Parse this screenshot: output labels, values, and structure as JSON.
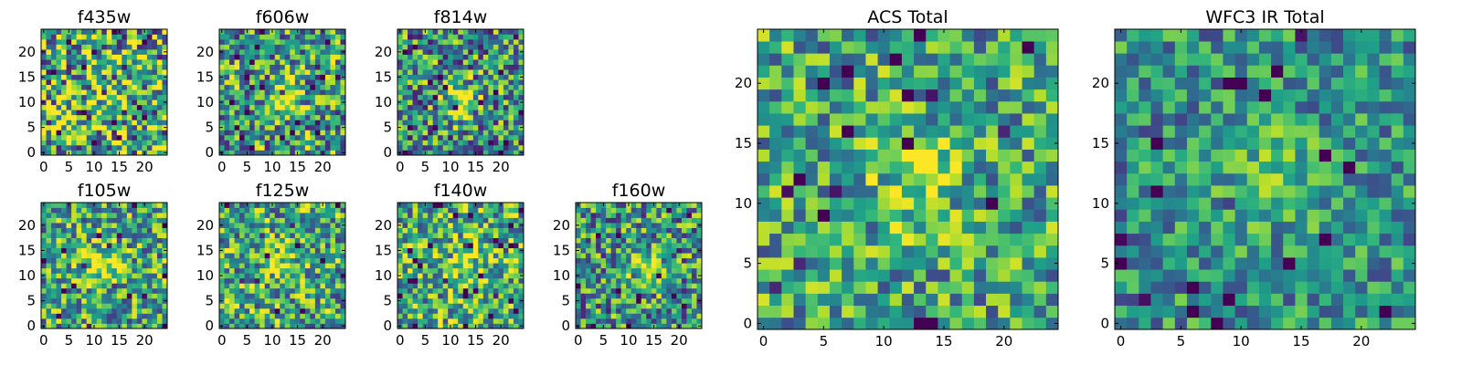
{
  "chart_data": {
    "type": "heatmap",
    "colormap": "viridis",
    "panels": [
      {
        "title": "f435w",
        "xticks": [
          "0",
          "5",
          "10",
          "15",
          "20"
        ],
        "yticks": [
          "0",
          "5",
          "10",
          "15",
          "20"
        ],
        "xlim": [
          0,
          24
        ],
        "ylim": [
          0,
          24
        ]
      },
      {
        "title": "f606w",
        "xticks": [
          "0",
          "5",
          "10",
          "15",
          "20"
        ],
        "yticks": [
          "0",
          "5",
          "10",
          "15",
          "20"
        ],
        "xlim": [
          0,
          24
        ],
        "ylim": [
          0,
          24
        ]
      },
      {
        "title": "f814w",
        "xticks": [
          "0",
          "5",
          "10",
          "15",
          "20"
        ],
        "yticks": [
          "0",
          "5",
          "10",
          "15",
          "20"
        ],
        "xlim": [
          0,
          24
        ],
        "ylim": [
          0,
          24
        ]
      },
      {
        "title": "f105w",
        "xticks": [
          "0",
          "5",
          "10",
          "15",
          "20"
        ],
        "yticks": [
          "0",
          "5",
          "10",
          "15",
          "20"
        ],
        "xlim": [
          0,
          24
        ],
        "ylim": [
          0,
          24
        ]
      },
      {
        "title": "f125w",
        "xticks": [
          "0",
          "5",
          "10",
          "15",
          "20"
        ],
        "yticks": [
          "0",
          "5",
          "10",
          "15",
          "20"
        ],
        "xlim": [
          0,
          24
        ],
        "ylim": [
          0,
          24
        ]
      },
      {
        "title": "f140w",
        "xticks": [
          "0",
          "5",
          "10",
          "15",
          "20"
        ],
        "yticks": [
          "0",
          "5",
          "10",
          "15",
          "20"
        ],
        "xlim": [
          0,
          24
        ],
        "ylim": [
          0,
          24
        ]
      },
      {
        "title": "f160w",
        "xticks": [
          "0",
          "5",
          "10",
          "15",
          "20"
        ],
        "yticks": [
          "0",
          "5",
          "10",
          "15",
          "20"
        ],
        "xlim": [
          0,
          24
        ],
        "ylim": [
          0,
          24
        ]
      },
      {
        "title": "ACS Total",
        "xticks": [
          "0",
          "5",
          "10",
          "15",
          "20"
        ],
        "yticks": [
          "0",
          "5",
          "10",
          "15",
          "20"
        ],
        "xlim": [
          0,
          24
        ],
        "ylim": [
          0,
          24
        ]
      },
      {
        "title": "WFC3 IR Total",
        "xticks": [
          "0",
          "5",
          "10",
          "15",
          "20"
        ],
        "yticks": [
          "0",
          "5",
          "10",
          "15",
          "20"
        ],
        "xlim": [
          0,
          24
        ],
        "ylim": [
          0,
          24
        ]
      }
    ]
  }
}
